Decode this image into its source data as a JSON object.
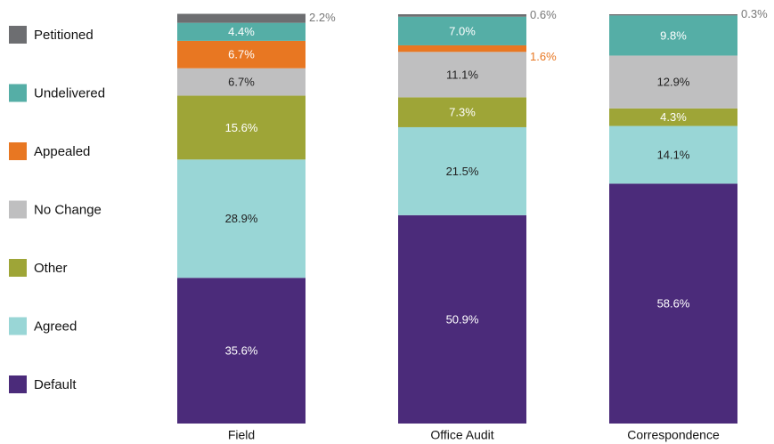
{
  "chart_data": {
    "type": "stacked-bar",
    "categories": [
      "Field",
      "Office Audit",
      "Correspondence"
    ],
    "ylim": [
      0,
      100
    ],
    "legend": "left",
    "series": [
      {
        "name": "Default",
        "color": "#4b2b7a",
        "values": [
          35.6,
          50.9,
          58.6
        ],
        "value_labels": [
          "35.6%",
          "50.9%",
          "58.6%"
        ]
      },
      {
        "name": "Agreed",
        "color": "#99d6d6",
        "values": [
          28.9,
          21.5,
          14.1
        ],
        "value_labels": [
          "28.9%",
          "21.5%",
          "14.1%"
        ]
      },
      {
        "name": "Other",
        "color": "#9ea537",
        "values": [
          15.6,
          7.3,
          4.3
        ],
        "value_labels": [
          "15.6%",
          "7.3%",
          "4.3%"
        ]
      },
      {
        "name": "No Change",
        "color": "#bfbfc0",
        "values": [
          6.7,
          11.1,
          12.9
        ],
        "value_labels": [
          "6.7%",
          "11.1%",
          "12.9%"
        ]
      },
      {
        "name": "Appealed",
        "color": "#e87722",
        "values": [
          6.7,
          1.6,
          null
        ],
        "value_labels": [
          "6.7%",
          "1.6%",
          null
        ]
      },
      {
        "name": "Undelivered",
        "color": "#55aea6",
        "values": [
          4.4,
          7.0,
          9.8
        ],
        "value_labels": [
          "4.4%",
          "7.0%",
          "9.8%"
        ]
      },
      {
        "name": "Petitioned",
        "color": "#6d6e71",
        "values": [
          2.2,
          0.6,
          0.3
        ],
        "value_labels": [
          "2.2%",
          "0.6%",
          "0.3%"
        ]
      }
    ]
  }
}
